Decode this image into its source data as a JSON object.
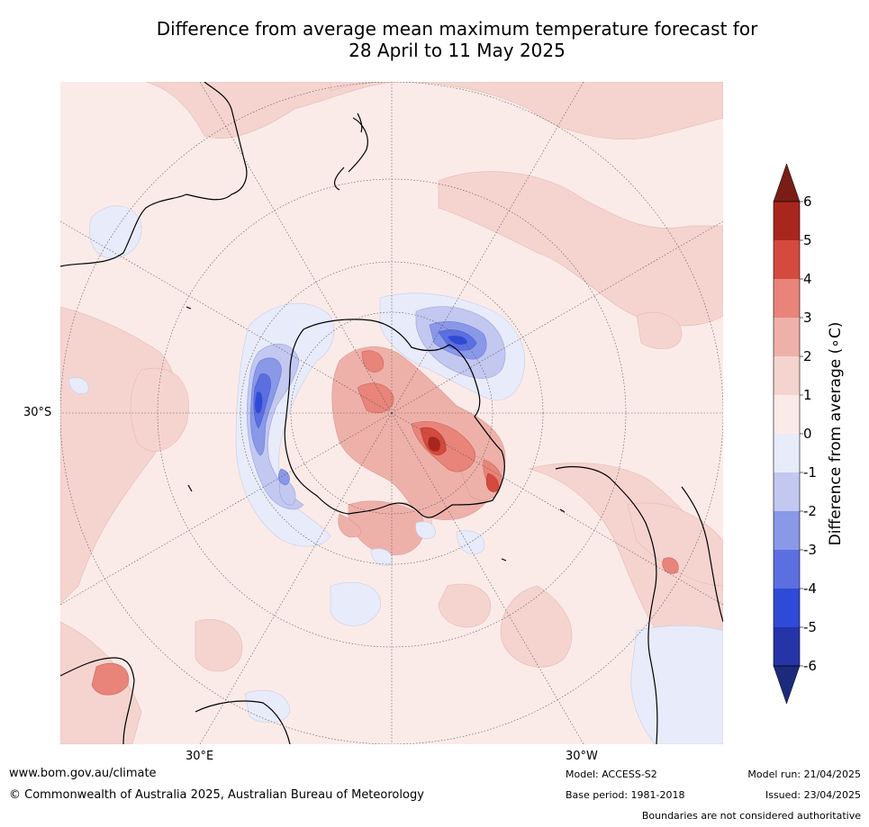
{
  "title": {
    "line1": "Difference from average mean maximum temperature forecast for",
    "line2": "28 April to 11 May 2025"
  },
  "map": {
    "projection": "south-polar",
    "lat_label": "30°S",
    "lon_labels": [
      "30°E",
      "30°W"
    ]
  },
  "colorbar": {
    "label": "Difference from average (∘C)",
    "ticks": [
      "6",
      "5",
      "4",
      "3",
      "2",
      "1",
      "0",
      "-1",
      "-2",
      "-3",
      "-4",
      "-5",
      "-6"
    ],
    "colors_warm_top_to_bottom": [
      "#7a1d17",
      "#a9261f",
      "#d54a3e",
      "#e8847a",
      "#eeb1aa",
      "#f5d4d0",
      "#fbebe8"
    ],
    "colors_cool_top_to_bottom": [
      "#e8ebf9",
      "#c2c8f0",
      "#8a98e8",
      "#5c6fe0",
      "#2f4ad6",
      "#2535a8",
      "#1c2a7c"
    ]
  },
  "footer": {
    "website": "www.bom.gov.au/climate",
    "copyright": "© Commonwealth of Australia 2025, Australian Bureau of Meteorology",
    "model": "Model: ACCESS-S2",
    "base_period": "Base period: 1981-2018",
    "model_run": "Model run: 21/04/2025",
    "issued": "Issued: 23/04/2025",
    "boundaries_note": "Boundaries are not considered authoritative"
  }
}
